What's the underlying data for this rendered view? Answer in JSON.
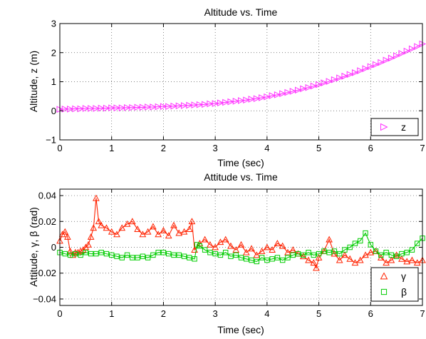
{
  "chart_data": [
    {
      "type": "line",
      "title": "Altitude vs. Time",
      "xlabel": "Time (sec)",
      "ylabel": "Altitude, z (m)",
      "xlim": [
        0,
        7
      ],
      "ylim": [
        -1,
        3
      ],
      "xticks": [
        0,
        1,
        2,
        3,
        4,
        5,
        6,
        7
      ],
      "yticks": [
        -1,
        0,
        1,
        2,
        3
      ],
      "xtick_labels": [
        "0",
        "1",
        "2",
        "3",
        "4",
        "5",
        "6",
        "7"
      ],
      "ytick_labels": [
        "−1",
        "0",
        "1",
        "2",
        "3"
      ],
      "grid": true,
      "legend_position": "bottom-right",
      "series": [
        {
          "name": "z",
          "color": "#ff33ff",
          "marker": "triangle-right",
          "x": [
            0.0,
            0.1,
            0.2,
            0.3,
            0.4,
            0.5,
            0.6,
            0.7,
            0.8,
            0.9,
            1.0,
            1.1,
            1.2,
            1.3,
            1.4,
            1.5,
            1.6,
            1.7,
            1.8,
            1.9,
            2.0,
            2.1,
            2.2,
            2.3,
            2.4,
            2.5,
            2.6,
            2.7,
            2.8,
            2.9,
            3.0,
            3.1,
            3.2,
            3.3,
            3.4,
            3.5,
            3.6,
            3.7,
            3.8,
            3.9,
            4.0,
            4.1,
            4.2,
            4.3,
            4.4,
            4.5,
            4.6,
            4.7,
            4.8,
            4.9,
            5.0,
            5.1,
            5.2,
            5.3,
            5.4,
            5.5,
            5.6,
            5.7,
            5.8,
            5.9,
            6.0,
            6.1,
            6.2,
            6.3,
            6.4,
            6.5,
            6.6,
            6.7,
            6.8,
            6.9,
            7.0
          ],
          "y": [
            0.05,
            0.06,
            0.06,
            0.07,
            0.07,
            0.08,
            0.08,
            0.08,
            0.09,
            0.09,
            0.1,
            0.1,
            0.1,
            0.11,
            0.11,
            0.12,
            0.12,
            0.13,
            0.13,
            0.14,
            0.15,
            0.15,
            0.16,
            0.17,
            0.18,
            0.19,
            0.2,
            0.21,
            0.22,
            0.24,
            0.25,
            0.27,
            0.29,
            0.31,
            0.33,
            0.35,
            0.37,
            0.4,
            0.42,
            0.45,
            0.48,
            0.52,
            0.55,
            0.59,
            0.63,
            0.67,
            0.71,
            0.76,
            0.8,
            0.85,
            0.9,
            0.96,
            1.01,
            1.07,
            1.13,
            1.19,
            1.25,
            1.31,
            1.38,
            1.45,
            1.52,
            1.59,
            1.66,
            1.74,
            1.81,
            1.89,
            1.97,
            2.05,
            2.13,
            2.21,
            2.3
          ]
        }
      ]
    },
    {
      "type": "line",
      "title": "Attitude vs. Time",
      "xlabel": "Time (sec)",
      "ylabel": "Attitude, γ, β (rad)",
      "xlim": [
        0,
        7
      ],
      "ylim": [
        -0.045,
        0.045
      ],
      "xticks": [
        0,
        1,
        2,
        3,
        4,
        5,
        6,
        7
      ],
      "yticks": [
        -0.04,
        -0.02,
        0,
        0.02,
        0.04
      ],
      "xtick_labels": [
        "0",
        "1",
        "2",
        "3",
        "4",
        "5",
        "6",
        "7"
      ],
      "ytick_labels": [
        "−0.04",
        "−0.02",
        "0",
        "0.02",
        "0.04"
      ],
      "grid": true,
      "legend_position": "bottom-right",
      "series": [
        {
          "name": "γ",
          "color": "#ff2200",
          "marker": "triangle-up",
          "x": [
            0.0,
            0.05,
            0.1,
            0.15,
            0.2,
            0.25,
            0.3,
            0.35,
            0.4,
            0.45,
            0.5,
            0.55,
            0.6,
            0.65,
            0.7,
            0.75,
            0.8,
            0.9,
            1.0,
            1.1,
            1.2,
            1.3,
            1.4,
            1.5,
            1.6,
            1.7,
            1.8,
            1.9,
            2.0,
            2.1,
            2.2,
            2.3,
            2.4,
            2.5,
            2.55,
            2.6,
            2.7,
            2.8,
            2.9,
            3.0,
            3.1,
            3.2,
            3.3,
            3.4,
            3.5,
            3.6,
            3.7,
            3.8,
            3.9,
            4.0,
            4.1,
            4.2,
            4.3,
            4.4,
            4.5,
            4.6,
            4.7,
            4.8,
            4.9,
            4.95,
            5.0,
            5.1,
            5.2,
            5.3,
            5.4,
            5.5,
            5.6,
            5.7,
            5.8,
            5.9,
            6.0,
            6.1,
            6.2,
            6.3,
            6.4,
            6.5,
            6.6,
            6.7,
            6.8,
            6.9,
            7.0
          ],
          "y": [
            0.005,
            0.01,
            0.012,
            0.008,
            -0.003,
            -0.006,
            -0.004,
            -0.004,
            -0.003,
            -0.002,
            0.0,
            0.002,
            0.008,
            0.015,
            0.038,
            0.02,
            0.017,
            0.015,
            0.012,
            0.01,
            0.015,
            0.018,
            0.02,
            0.014,
            0.01,
            0.012,
            0.016,
            0.01,
            0.013,
            0.009,
            0.017,
            0.011,
            0.012,
            0.014,
            0.02,
            -0.002,
            0.003,
            0.006,
            0.002,
            0.0,
            0.004,
            0.006,
            0.001,
            -0.002,
            0.002,
            -0.004,
            -0.001,
            -0.006,
            -0.003,
            0.0,
            -0.002,
            0.003,
            0.001,
            -0.004,
            -0.002,
            -0.005,
            -0.007,
            -0.01,
            -0.012,
            -0.016,
            -0.008,
            -0.003,
            0.006,
            -0.005,
            -0.01,
            -0.006,
            -0.009,
            -0.012,
            -0.01,
            -0.006,
            -0.004,
            -0.003,
            -0.008,
            -0.012,
            -0.01,
            -0.006,
            -0.009,
            -0.011,
            -0.01,
            -0.012,
            -0.01
          ]
        },
        {
          "name": "β",
          "color": "#00cc00",
          "marker": "square",
          "x": [
            0.0,
            0.1,
            0.2,
            0.3,
            0.4,
            0.5,
            0.6,
            0.7,
            0.8,
            0.9,
            1.0,
            1.1,
            1.2,
            1.3,
            1.4,
            1.5,
            1.6,
            1.7,
            1.8,
            1.9,
            2.0,
            2.1,
            2.2,
            2.3,
            2.4,
            2.5,
            2.6,
            2.65,
            2.7,
            2.8,
            2.9,
            3.0,
            3.1,
            3.2,
            3.3,
            3.4,
            3.5,
            3.6,
            3.7,
            3.8,
            3.9,
            4.0,
            4.1,
            4.2,
            4.3,
            4.4,
            4.5,
            4.6,
            4.7,
            4.8,
            4.9,
            5.0,
            5.1,
            5.2,
            5.3,
            5.4,
            5.5,
            5.6,
            5.7,
            5.8,
            5.9,
            6.0,
            6.1,
            6.2,
            6.3,
            6.4,
            6.5,
            6.6,
            6.7,
            6.8,
            6.9,
            7.0
          ],
          "y": [
            -0.004,
            -0.005,
            -0.006,
            -0.005,
            -0.006,
            -0.004,
            -0.005,
            -0.005,
            -0.004,
            -0.005,
            -0.006,
            -0.007,
            -0.008,
            -0.006,
            -0.008,
            -0.008,
            -0.007,
            -0.008,
            -0.006,
            -0.004,
            -0.004,
            -0.005,
            -0.006,
            -0.006,
            -0.007,
            -0.008,
            -0.009,
            0.002,
            0.001,
            -0.002,
            -0.004,
            -0.005,
            -0.006,
            -0.004,
            -0.007,
            -0.006,
            -0.008,
            -0.009,
            -0.01,
            -0.011,
            -0.008,
            -0.01,
            -0.009,
            -0.008,
            -0.01,
            -0.008,
            -0.006,
            -0.005,
            -0.006,
            -0.004,
            -0.006,
            -0.005,
            -0.003,
            -0.004,
            -0.003,
            -0.005,
            -0.002,
            0.0,
            0.003,
            0.005,
            0.011,
            0.002,
            -0.003,
            -0.006,
            -0.004,
            -0.006,
            -0.007,
            -0.005,
            -0.004,
            -0.002,
            0.003,
            0.007
          ]
        }
      ]
    }
  ]
}
